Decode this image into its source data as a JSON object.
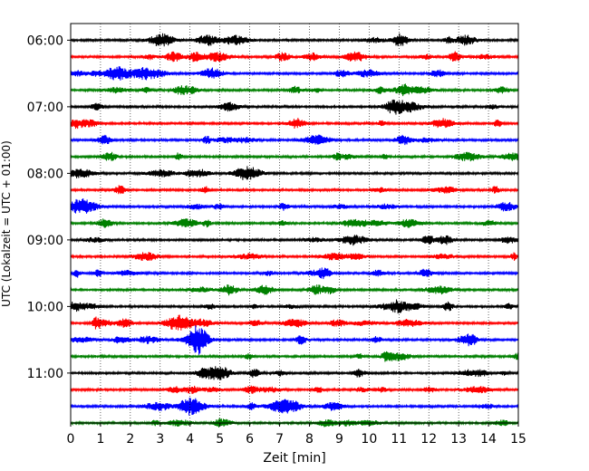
{
  "chart_data": {
    "type": "line",
    "title": "",
    "xlabel": "Zeit  [min]",
    "ylabel": "UTC (Lokalzeit = UTC + 01:00)",
    "xlim": [
      0,
      15
    ],
    "xticks": [
      0,
      1,
      2,
      3,
      4,
      5,
      6,
      7,
      8,
      9,
      10,
      11,
      12,
      13,
      14,
      15
    ],
    "xtick_labels": [
      "0",
      "1",
      "2",
      "3",
      "4",
      "5",
      "6",
      "7",
      "8",
      "9",
      "10",
      "11",
      "12",
      "13",
      "14",
      "15"
    ],
    "ytick_labels": [
      "06:00",
      "07:00",
      "08:00",
      "09:00",
      "10:00",
      "11:00"
    ],
    "ylim": [
      "05:45",
      "11:45"
    ],
    "trace_interval_minutes": 15,
    "first_trace": "06:00",
    "trace_count": 24,
    "trace_colors": [
      "#000000",
      "#ff0000",
      "#0000ff",
      "#008000"
    ],
    "grid": "vertical dotted",
    "legend": "none"
  }
}
